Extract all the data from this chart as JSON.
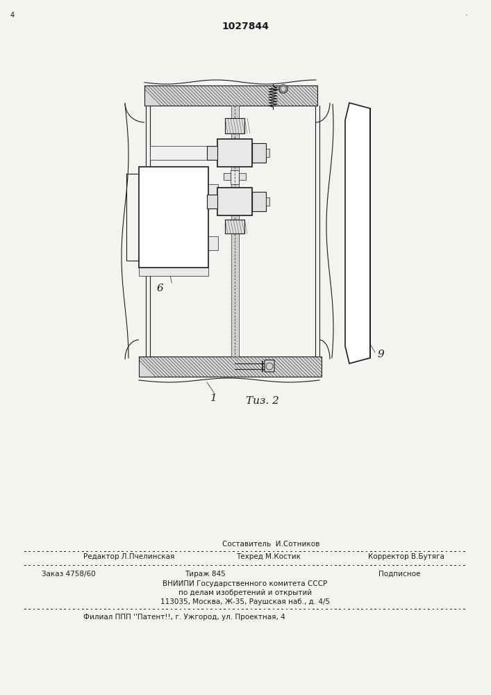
{
  "patent_number": "1027844",
  "fig_label": "Τиз. 2",
  "label_1": "1",
  "label_6": "6",
  "label_9": "9",
  "bg_color": "#f5f3ef",
  "drawing_color": "#1a1a1a",
  "footer_sostavitel": "Составитель  И.Сотников",
  "footer_redaktor": "Редактор Л.Пчелинская",
  "footer_tehred": "Техред М.Костик",
  "footer_korrektor": "Корректор В.Бутяга",
  "footer_zakaz": "Заказ 4758/60",
  "footer_tirazh": "Тираж 845",
  "footer_podpisnoe": "Подписное",
  "footer_vniipii": "ВНИИПИ Государственного комитета СССР",
  "footer_po_delam": "по делам изобретений и открытий",
  "footer_addr": "113035, Москва, Ж-35, Раушская наб., д. 4/5",
  "footer_filial": "Филиал ППП ''Патент!!, г. Ужгород, ул. Проектная, 4"
}
